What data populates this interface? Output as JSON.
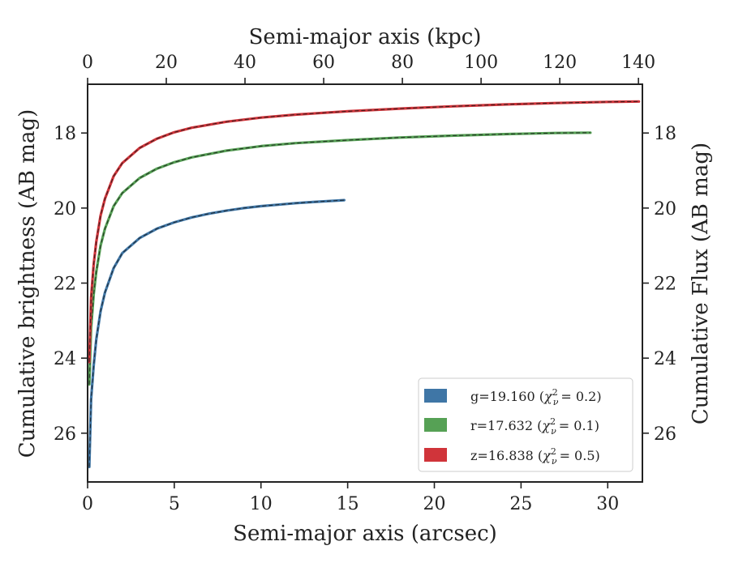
{
  "chart_data": {
    "type": "line",
    "xlabel": "Semi-major axis (arcsec)",
    "x2label": "Semi-major axis (kpc)",
    "ylabel": "Cumulative brightness (AB mag)",
    "y2label": "Cumulative Flux (AB mag)",
    "xlim": [
      0,
      32
    ],
    "x2lim": [
      0,
      141
    ],
    "ylim": [
      27.3,
      16.7
    ],
    "y_inverted": true,
    "xticks": [
      "0",
      "5",
      "10",
      "15",
      "20",
      "25",
      "30"
    ],
    "x2ticks": [
      "0",
      "20",
      "40",
      "60",
      "80",
      "100",
      "120",
      "140"
    ],
    "yticks": [
      "18",
      "20",
      "22",
      "24",
      "26"
    ],
    "legend_position": "lower-right",
    "series": [
      {
        "name": "g=19.160",
        "chi_symbol": "χ",
        "chi_sub": "ν",
        "chi_sup": "2",
        "chi_value": "= 0.2)",
        "color": "#3f76a6",
        "x": [
          0.1,
          0.2,
          0.35,
          0.5,
          0.75,
          1,
          1.5,
          2,
          3,
          4,
          5,
          6,
          7,
          8,
          9,
          10,
          11,
          12,
          13,
          14,
          14.8
        ],
        "y": [
          26.9,
          25.1,
          24.2,
          23.5,
          22.75,
          22.25,
          21.6,
          21.2,
          20.8,
          20.55,
          20.38,
          20.25,
          20.15,
          20.07,
          20.0,
          19.95,
          19.91,
          19.87,
          19.84,
          19.81,
          19.79
        ]
      },
      {
        "name": "r=17.632",
        "chi_symbol": "χ",
        "chi_sub": "ν",
        "chi_sup": "2",
        "chi_value": "= 0.1)",
        "color": "#56a155",
        "x": [
          0.1,
          0.2,
          0.35,
          0.5,
          0.75,
          1,
          1.5,
          2,
          3,
          4,
          5,
          6,
          8,
          10,
          12,
          15,
          18,
          21,
          24,
          27,
          29
        ],
        "y": [
          24.7,
          23.2,
          22.3,
          21.7,
          21.0,
          20.55,
          19.95,
          19.6,
          19.2,
          18.95,
          18.78,
          18.65,
          18.47,
          18.35,
          18.27,
          18.19,
          18.12,
          18.07,
          18.03,
          18.0,
          17.99
        ]
      },
      {
        "name": "z=16.838",
        "chi_symbol": "χ",
        "chi_sub": "ν",
        "chi_sup": "2",
        "chi_value": "= 0.5)",
        "color": "#d0343a",
        "x": [
          0.1,
          0.2,
          0.35,
          0.5,
          0.75,
          1,
          1.5,
          2,
          3,
          4,
          5,
          6,
          8,
          10,
          12,
          15,
          18,
          21,
          24,
          27,
          30,
          31.8
        ],
        "y": [
          24.1,
          22.4,
          21.5,
          20.9,
          20.2,
          19.75,
          19.15,
          18.8,
          18.4,
          18.15,
          17.98,
          17.86,
          17.7,
          17.59,
          17.51,
          17.42,
          17.35,
          17.29,
          17.24,
          17.2,
          17.17,
          17.16
        ]
      }
    ]
  }
}
